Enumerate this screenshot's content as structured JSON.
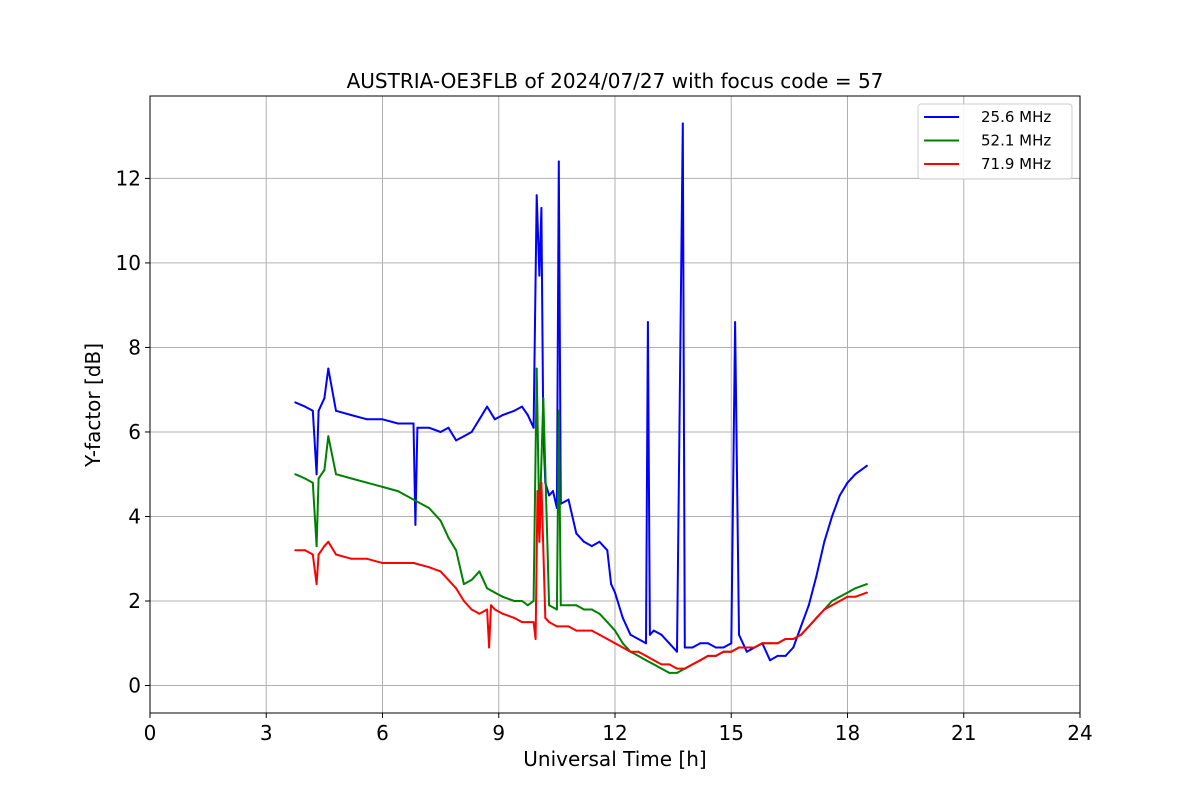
{
  "chart_data": {
    "type": "line",
    "title": "AUSTRIA-OE3FLB of 2024/07/27 with focus code = 57",
    "xlabel": "Universal Time [h]",
    "ylabel": "Y-factor [dB]",
    "xlim": [
      0,
      24
    ],
    "ylim": [
      -0.65,
      13.95
    ],
    "xticks": [
      0,
      3,
      6,
      9,
      12,
      15,
      18,
      21,
      24
    ],
    "yticks": [
      0,
      2,
      4,
      6,
      8,
      10,
      12
    ],
    "grid": true,
    "legend_position": "top-right",
    "series": [
      {
        "name": "25.6 MHz",
        "color": "#0000ff",
        "x": [
          3.75,
          4.0,
          4.2,
          4.3,
          4.35,
          4.5,
          4.6,
          4.8,
          5.2,
          5.6,
          6.0,
          6.4,
          6.8,
          6.85,
          6.9,
          7.2,
          7.5,
          7.7,
          7.9,
          8.1,
          8.3,
          8.5,
          8.7,
          8.9,
          9.1,
          9.4,
          9.6,
          9.75,
          9.9,
          9.98,
          10.05,
          10.1,
          10.15,
          10.2,
          10.3,
          10.4,
          10.5,
          10.55,
          10.6,
          10.8,
          11.0,
          11.2,
          11.4,
          11.6,
          11.8,
          11.9,
          12.0,
          12.2,
          12.4,
          12.6,
          12.8,
          12.85,
          12.9,
          13.0,
          13.2,
          13.4,
          13.6,
          13.75,
          13.8,
          14.0,
          14.2,
          14.4,
          14.6,
          14.8,
          15.0,
          15.1,
          15.2,
          15.4,
          15.6,
          15.8,
          16.0,
          16.2,
          16.4,
          16.6,
          16.8,
          17.0,
          17.2,
          17.4,
          17.6,
          17.8,
          18.0,
          18.2,
          18.5
        ],
        "y": [
          6.7,
          6.6,
          6.5,
          5.0,
          6.5,
          6.8,
          7.5,
          6.5,
          6.4,
          6.3,
          6.3,
          6.2,
          6.2,
          3.8,
          6.1,
          6.1,
          6.0,
          6.1,
          5.8,
          5.9,
          6.0,
          6.3,
          6.6,
          6.3,
          6.4,
          6.5,
          6.6,
          6.4,
          6.1,
          11.6,
          9.7,
          11.3,
          6.0,
          4.8,
          4.5,
          4.6,
          4.2,
          12.4,
          4.3,
          4.4,
          3.6,
          3.4,
          3.3,
          3.4,
          3.2,
          2.4,
          2.2,
          1.6,
          1.2,
          1.1,
          1.0,
          8.6,
          1.2,
          1.3,
          1.2,
          1.0,
          0.8,
          13.3,
          0.9,
          0.9,
          1.0,
          1.0,
          0.9,
          0.9,
          1.0,
          8.6,
          1.2,
          0.8,
          0.9,
          1.0,
          0.6,
          0.7,
          0.7,
          0.9,
          1.4,
          1.9,
          2.6,
          3.4,
          4.0,
          4.5,
          4.8,
          5.0,
          5.2
        ]
      },
      {
        "name": "52.1 MHz",
        "color": "#008000",
        "x": [
          3.75,
          4.0,
          4.2,
          4.3,
          4.35,
          4.5,
          4.6,
          4.8,
          5.2,
          5.6,
          6.0,
          6.4,
          6.8,
          7.2,
          7.5,
          7.7,
          7.9,
          8.1,
          8.3,
          8.5,
          8.7,
          8.9,
          9.1,
          9.4,
          9.6,
          9.75,
          9.9,
          9.98,
          10.05,
          10.15,
          10.3,
          10.5,
          10.55,
          10.6,
          10.8,
          11.0,
          11.2,
          11.4,
          11.6,
          11.8,
          12.0,
          12.2,
          12.4,
          12.6,
          12.8,
          13.0,
          13.2,
          13.4,
          13.6,
          13.8,
          14.0,
          14.2,
          14.4,
          14.6,
          14.8,
          15.0,
          15.2,
          15.4,
          15.6,
          15.8,
          16.0,
          16.2,
          16.4,
          16.6,
          16.8,
          17.0,
          17.2,
          17.4,
          17.6,
          17.8,
          18.0,
          18.2,
          18.5
        ],
        "y": [
          5.0,
          4.9,
          4.8,
          3.3,
          4.9,
          5.1,
          5.9,
          5.0,
          4.9,
          4.8,
          4.7,
          4.6,
          4.4,
          4.2,
          3.9,
          3.5,
          3.2,
          2.4,
          2.5,
          2.7,
          2.3,
          2.2,
          2.1,
          2.0,
          2.0,
          1.9,
          2.0,
          7.5,
          3.7,
          6.8,
          1.9,
          1.8,
          6.5,
          1.9,
          1.9,
          1.9,
          1.8,
          1.8,
          1.7,
          1.5,
          1.3,
          1.0,
          0.8,
          0.7,
          0.6,
          0.5,
          0.4,
          0.3,
          0.3,
          0.4,
          0.5,
          0.6,
          0.7,
          0.7,
          0.8,
          0.8,
          0.9,
          0.9,
          0.9,
          1.0,
          1.0,
          1.0,
          1.1,
          1.1,
          1.2,
          1.4,
          1.6,
          1.8,
          2.0,
          2.1,
          2.2,
          2.3,
          2.4
        ]
      },
      {
        "name": "71.9 MHz",
        "color": "#ff0000",
        "x": [
          3.75,
          4.0,
          4.2,
          4.3,
          4.35,
          4.5,
          4.6,
          4.8,
          5.2,
          5.6,
          6.0,
          6.4,
          6.8,
          7.2,
          7.5,
          7.7,
          7.9,
          8.1,
          8.3,
          8.5,
          8.7,
          8.75,
          8.8,
          8.9,
          9.1,
          9.4,
          9.6,
          9.75,
          9.9,
          9.95,
          10.0,
          10.05,
          10.1,
          10.2,
          10.3,
          10.5,
          10.8,
          11.0,
          11.2,
          11.4,
          11.6,
          11.8,
          12.0,
          12.2,
          12.4,
          12.6,
          12.8,
          13.0,
          13.2,
          13.4,
          13.6,
          13.8,
          14.0,
          14.2,
          14.4,
          14.6,
          14.8,
          15.0,
          15.2,
          15.4,
          15.6,
          15.8,
          16.0,
          16.2,
          16.4,
          16.6,
          16.8,
          17.0,
          17.2,
          17.4,
          17.6,
          17.8,
          18.0,
          18.2,
          18.5
        ],
        "y": [
          3.2,
          3.2,
          3.1,
          2.4,
          3.1,
          3.3,
          3.4,
          3.1,
          3.0,
          3.0,
          2.9,
          2.9,
          2.9,
          2.8,
          2.7,
          2.5,
          2.3,
          2.0,
          1.8,
          1.7,
          1.8,
          0.9,
          1.9,
          1.8,
          1.7,
          1.6,
          1.5,
          1.5,
          1.5,
          1.1,
          4.6,
          3.4,
          4.8,
          1.6,
          1.5,
          1.4,
          1.4,
          1.3,
          1.3,
          1.3,
          1.2,
          1.1,
          1.0,
          0.9,
          0.8,
          0.8,
          0.7,
          0.6,
          0.5,
          0.5,
          0.4,
          0.4,
          0.5,
          0.6,
          0.7,
          0.7,
          0.8,
          0.8,
          0.9,
          0.9,
          0.9,
          1.0,
          1.0,
          1.0,
          1.1,
          1.1,
          1.2,
          1.4,
          1.6,
          1.8,
          1.9,
          2.0,
          2.1,
          2.1,
          2.2
        ]
      }
    ]
  }
}
